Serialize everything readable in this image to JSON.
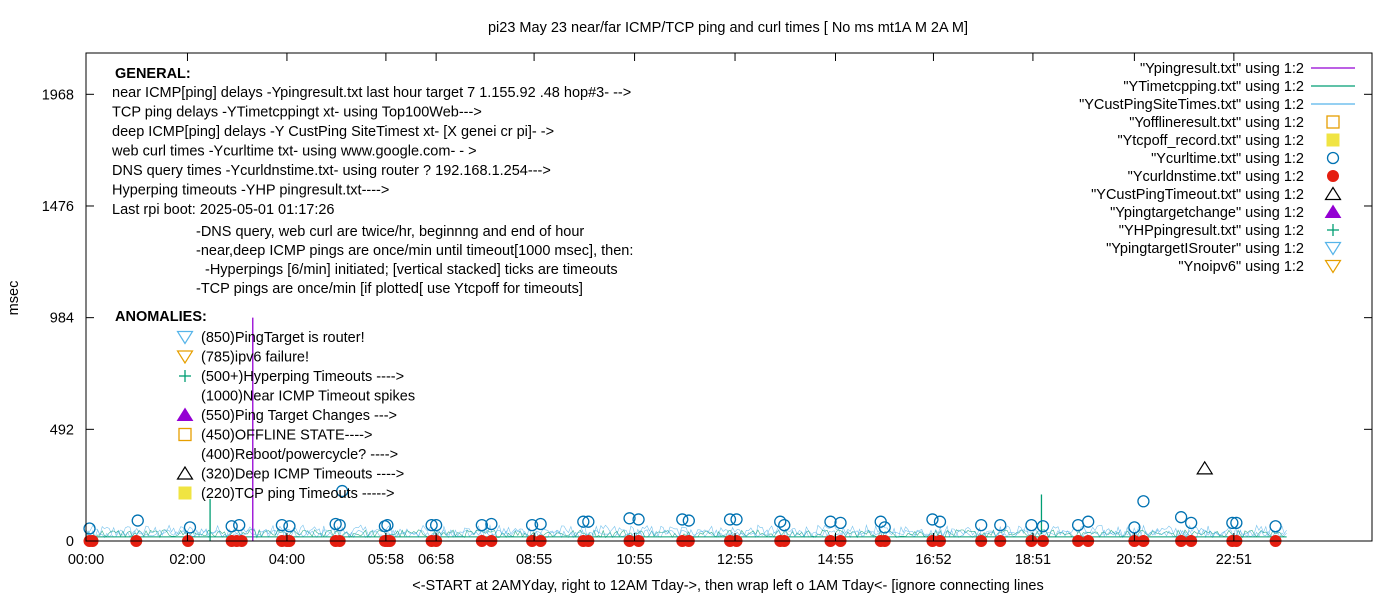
{
  "chart_data": {
    "type": "scatter",
    "title": "pi23 May 23  near/far ICMP/TCP ping and curl times [ No ms mt1A  M 2A M]",
    "xlabel": "<-START at 2AMYday, right to 12AM Tday->, then wrap left  o 1AM Tday<- [ignore connecting lines",
    "ylabel": "msec",
    "xlim": [
      0,
      25.6
    ],
    "ylim": [
      0,
      2150
    ],
    "x_ticks": [
      {
        "label": "00:00",
        "value": 0
      },
      {
        "label": "02:00",
        "value": 2.02
      },
      {
        "label": "04:00",
        "value": 4.0
      },
      {
        "label": "05:58",
        "value": 5.97
      },
      {
        "label": "06:58",
        "value": 6.97
      },
      {
        "label": "08:55",
        "value": 8.92
      },
      {
        "label": "10:55",
        "value": 10.92
      },
      {
        "label": "12:55",
        "value": 12.92
      },
      {
        "label": "14:55",
        "value": 14.92
      },
      {
        "label": "16:52",
        "value": 16.87
      },
      {
        "label": "18:51",
        "value": 18.85
      },
      {
        "label": "20:52",
        "value": 20.87
      },
      {
        "label": "22:51",
        "value": 22.85
      }
    ],
    "y_ticks": [
      {
        "label": "0",
        "value": 0
      },
      {
        "label": "492",
        "value": 492
      },
      {
        "label": "984",
        "value": 984
      },
      {
        "label": "1476",
        "value": 1476
      },
      {
        "label": "1968",
        "value": 1968
      }
    ],
    "legend_position": "top-right",
    "legend": [
      {
        "label": "\"Ypingresult.txt\" using 1:2",
        "marker": "line",
        "color": "#9400d3"
      },
      {
        "label": "\"YTimetcpping.txt\" using 1:2",
        "marker": "line",
        "color": "#009e73"
      },
      {
        "label": "\"YCustPingSiteTimes.txt\" using 1:2",
        "marker": "line",
        "color": "#56b4e9"
      },
      {
        "label": "\"Yofflineresult.txt\" using 1:2",
        "marker": "open-square",
        "color": "#e69f00"
      },
      {
        "label": "\"Ytcpoff_record.txt\" using 1:2",
        "marker": "filled-square",
        "color": "#f0e442"
      },
      {
        "label": "\"Ycurltime.txt\" using 1:2",
        "marker": "open-circle",
        "color": "#0072b2"
      },
      {
        "label": "\"Ycurldnstime.txt\" using 1:2",
        "marker": "filled-circle",
        "color": "#e51e10"
      },
      {
        "label": "\"YCustPingTimeout.txt\" using 1:2",
        "marker": "open-triangle-up",
        "color": "#000000"
      },
      {
        "label": "\"Ypingtargetchange\" using 1:2",
        "marker": "filled-triangle-up",
        "color": "#9400d3"
      },
      {
        "label": "\"YHPpingresult.txt\" using 1:2",
        "marker": "plus",
        "color": "#009e73"
      },
      {
        "label": "\"YpingtargetISrouter\" using 1:2",
        "marker": "open-triangle-down",
        "color": "#56b4e9"
      },
      {
        "label": "\"Ynoipv6\" using 1:2",
        "marker": "open-triangle-down",
        "color": "#e69f00"
      }
    ],
    "series": [
      {
        "name": "\"Ycurltime.txt\" using 1:2",
        "x": [
          0.07,
          1.03,
          2.07,
          2.9,
          3.05,
          3.9,
          4.05,
          4.97,
          5.05,
          5.95,
          6.0,
          6.88,
          6.97,
          7.88,
          8.07,
          8.88,
          9.05,
          9.9,
          10.0,
          10.82,
          11.0,
          11.87,
          12.0,
          12.82,
          12.95,
          13.82,
          13.9,
          14.82,
          15.02,
          15.82,
          15.9,
          16.85,
          17.0,
          17.82,
          18.2,
          18.82,
          19.05,
          19.75,
          19.95,
          20.87,
          21.05,
          21.8,
          22.0,
          22.82,
          22.9,
          23.68
        ],
        "y": [
          55,
          90,
          60,
          65,
          70,
          70,
          65,
          75,
          70,
          65,
          70,
          70,
          70,
          70,
          75,
          70,
          75,
          85,
          85,
          100,
          95,
          95,
          90,
          95,
          95,
          85,
          70,
          85,
          80,
          85,
          60,
          95,
          85,
          70,
          70,
          70,
          65,
          70,
          85,
          60,
          175,
          105,
          80,
          80,
          80,
          65
        ],
        "extra_x": [
          5.1
        ],
        "extra_y": [
          220
        ]
      },
      {
        "name": "\"Ycurldnstime.txt\" using 1:2",
        "x": [
          0.07,
          0.13,
          1.0,
          2.03,
          2.9,
          3.0,
          3.1,
          3.9,
          4.0,
          4.05,
          4.97,
          5.05,
          5.95,
          6.0,
          6.05,
          6.88,
          6.97,
          7.88,
          8.07,
          8.88,
          9.05,
          9.9,
          10.0,
          10.82,
          11.0,
          11.87,
          12.0,
          12.82,
          12.95,
          13.82,
          13.9,
          14.82,
          15.02,
          15.82,
          15.9,
          16.85,
          17.0,
          17.82,
          18.2,
          18.82,
          19.05,
          19.75,
          19.95,
          20.87,
          21.05,
          21.8,
          22.0,
          22.82,
          22.9,
          23.68
        ],
        "y": [
          0,
          0,
          0,
          0,
          0,
          0,
          0,
          0,
          0,
          0,
          0,
          0,
          0,
          0,
          0,
          0,
          0,
          0,
          0,
          0,
          0,
          0,
          0,
          0,
          0,
          0,
          0,
          0,
          0,
          0,
          0,
          0,
          0,
          0,
          0,
          0,
          0,
          0,
          0,
          0,
          0,
          0,
          0,
          0,
          0,
          0,
          0,
          0,
          0,
          0
        ]
      },
      {
        "name": "\"YCustPingTimeout.txt\" using 1:2",
        "x": [
          22.27
        ],
        "y": [
          320
        ]
      },
      {
        "name": "\"Ypingresult.txt\" using 1:2",
        "x": [
          3.32,
          3.32
        ],
        "y": [
          0,
          984
        ]
      },
      {
        "name": "\"YTimetcpping.txt\" using 1:2",
        "x": [
          2.47,
          2.47,
          19.02,
          19.02
        ],
        "y": [
          0,
          185,
          30,
          205
        ]
      }
    ]
  },
  "annotations": {
    "general_header": "GENERAL:",
    "general_lines": [
      "near ICMP[ping] delays -Ypingresult.txt last hour target 7 1.155.92  .48 hop#3- -->",
      "TCP ping delays -YTimetcppingt xt- using Top100Web--->",
      "deep ICMP[ping] delays -Y CustPing SiteTimest  xt- [X genei cr pi]- ->",
      "web curl times -Ycurltime txt- using www.google.com- - >",
      "DNS query times -Ycurldnstime.txt- using router ? 192.168.1.254--->",
      "Hyperping timeouts -YHP pingresult.txt---->",
      "Last rpi boot: 2025-05-01 01:17:26"
    ],
    "notes": [
      "-DNS query, web curl are twice/hr, beginnng and end of hour",
      "-near,deep ICMP pings are once/min until timeout[1000 msec], then:",
      "-Hyperpings [6/min] initiated; [vertical stacked] ticks are timeouts",
      "-TCP pings are once/min [if plotted[ use Ytcpoff for timeouts]"
    ],
    "anomalies_header": "ANOMALIES:",
    "anomalies": [
      {
        "marker": "open-triangle-down",
        "color": "#56b4e9",
        "text": "(850)PingTarget is router!"
      },
      {
        "marker": "open-triangle-down",
        "color": "#e69f00",
        "text": "(785)ipv6 failure!"
      },
      {
        "marker": "plus",
        "color": "#009e73",
        "text": "(500+)Hyperping Timeouts ---->"
      },
      {
        "marker": "none",
        "color": "#000000",
        "text": "(1000)Near ICMP Timeout spikes"
      },
      {
        "marker": "filled-triangle-up",
        "color": "#9400d3",
        "text": "(550)Ping Target Changes  --->"
      },
      {
        "marker": "open-square",
        "color": "#e69f00",
        "text": "(450)OFFLINE STATE---->"
      },
      {
        "marker": "none",
        "color": "#000000",
        "text": "(400)Reboot/powercycle?  ---->"
      },
      {
        "marker": "open-triangle-up",
        "color": "#000000",
        "text": "(320)Deep ICMP Timeouts ---->"
      },
      {
        "marker": "filled-square",
        "color": "#f0e442",
        "text": "(220)TCP ping Timeouts ----->"
      }
    ]
  }
}
